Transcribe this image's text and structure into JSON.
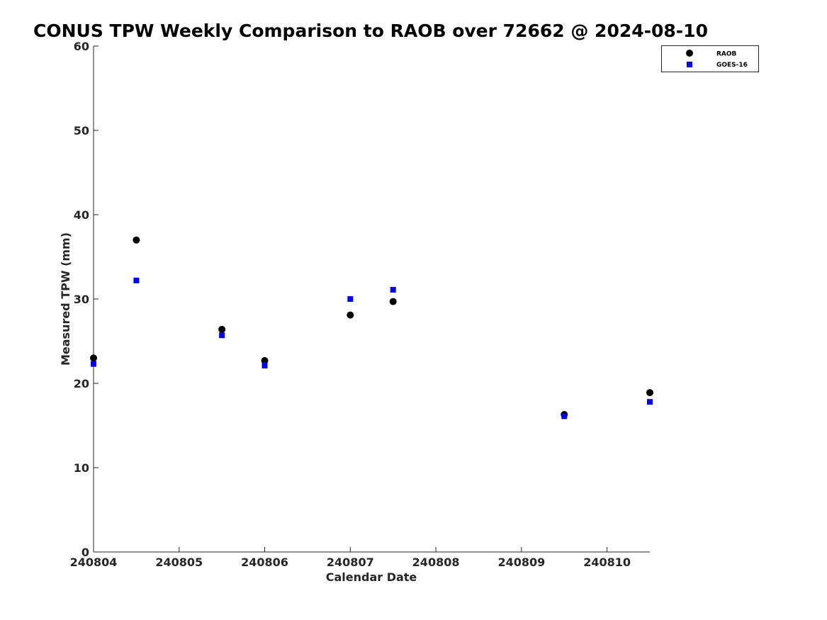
{
  "chart_data": {
    "type": "scatter",
    "title": "CONUS TPW Weekly Comparison to RAOB over 72662 @ 2024-08-10",
    "xlabel": "Calendar Date",
    "ylabel": "Measured TPW (mm)",
    "x_tick_labels": [
      "240804",
      "240805",
      "240806",
      "240807",
      "240808",
      "240809",
      "240810"
    ],
    "y_tick_labels": [
      "0",
      "10",
      "20",
      "30",
      "40",
      "50",
      "60"
    ],
    "xlim": [
      "240804",
      "240810 12Z"
    ],
    "ylim": [
      0,
      60
    ],
    "grid": false,
    "legend_position": "top-right",
    "series": [
      {
        "name": "RAOB",
        "marker": "circle",
        "color": "#000000",
        "x": [
          "240804 00Z",
          "240804 12Z",
          "240805 12Z",
          "240806 00Z",
          "240807 00Z",
          "240807 12Z",
          "240809 12Z",
          "240810 12Z"
        ],
        "y": [
          23.0,
          37.0,
          26.4,
          22.7,
          28.1,
          29.7,
          16.3,
          18.9
        ]
      },
      {
        "name": "GOES-16",
        "marker": "square",
        "color": "#0000ff",
        "x": [
          "240804 00Z",
          "240804 12Z",
          "240805 12Z",
          "240806 00Z",
          "240807 00Z",
          "240807 12Z",
          "240809 12Z",
          "240810 12Z"
        ],
        "y": [
          22.3,
          32.2,
          25.7,
          22.1,
          30.0,
          31.1,
          16.1,
          17.8
        ]
      }
    ]
  }
}
